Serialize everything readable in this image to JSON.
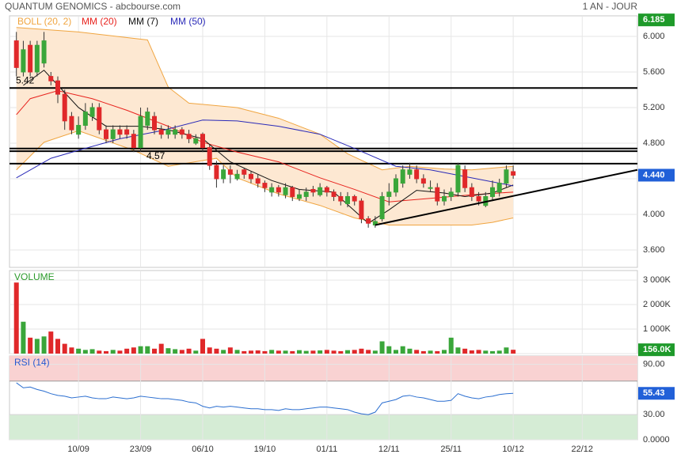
{
  "header": {
    "title": "QUANTUM GENOMICS - abcbourse.com",
    "period": "1 AN - JOUR"
  },
  "chart_data": [
    {
      "type": "candlestick",
      "up_color": "#3aa63a",
      "down_color": "#e0282a",
      "open": [
        5.95,
        5.6,
        5.9,
        5.6,
        5.7,
        5.55,
        5.5,
        5.35,
        5.1,
        4.9,
        5.0,
        5.1,
        5.2,
        4.95,
        4.85,
        4.95,
        4.95,
        4.9,
        4.75,
        5.0,
        5.1,
        4.95,
        4.9,
        4.9,
        4.95,
        4.9,
        4.8,
        4.9,
        4.75,
        4.55,
        4.4,
        4.5,
        4.4,
        4.5,
        4.45,
        4.4,
        4.35,
        4.25,
        4.3,
        4.22,
        4.3,
        4.18,
        4.2,
        4.28,
        4.22,
        4.3,
        4.25,
        4.2,
        4.12,
        4.2,
        4.15,
        3.95,
        3.88,
        3.95,
        4.2,
        4.25,
        4.35,
        4.45,
        4.5,
        4.4,
        4.3,
        4.3,
        4.15,
        4.2,
        4.25,
        4.5,
        4.3,
        4.2,
        4.1,
        4.2,
        4.25,
        4.35,
        4.48
      ],
      "high": [
        6.05,
        5.95,
        5.95,
        5.95,
        6.05,
        5.6,
        5.55,
        5.4,
        5.15,
        5.1,
        5.25,
        5.25,
        5.25,
        5.0,
        5.0,
        5.0,
        5.0,
        4.95,
        5.2,
        5.2,
        5.15,
        5.0,
        5.0,
        5.0,
        4.98,
        4.95,
        4.9,
        4.92,
        4.78,
        4.6,
        4.55,
        4.55,
        4.5,
        4.52,
        4.48,
        4.45,
        4.38,
        4.35,
        4.33,
        4.35,
        4.32,
        4.28,
        4.3,
        4.32,
        4.35,
        4.32,
        4.28,
        4.25,
        4.25,
        4.22,
        4.18,
        3.98,
        3.98,
        4.25,
        4.35,
        4.45,
        4.55,
        4.58,
        4.55,
        4.45,
        4.38,
        4.35,
        4.28,
        4.3,
        4.58,
        4.55,
        4.35,
        4.25,
        4.25,
        4.38,
        4.4,
        4.55,
        4.55
      ],
      "low": [
        5.55,
        5.55,
        5.55,
        5.55,
        5.65,
        5.45,
        5.25,
        4.95,
        4.9,
        4.85,
        4.95,
        5.05,
        4.9,
        4.8,
        4.8,
        4.85,
        4.85,
        4.7,
        4.7,
        4.95,
        4.9,
        4.85,
        4.85,
        4.85,
        4.85,
        4.8,
        4.78,
        4.7,
        4.5,
        4.3,
        4.35,
        4.35,
        4.38,
        4.4,
        4.35,
        4.3,
        4.25,
        4.2,
        4.2,
        4.18,
        4.15,
        4.15,
        4.15,
        4.2,
        4.2,
        4.2,
        4.15,
        4.1,
        4.08,
        4.1,
        3.9,
        3.85,
        3.85,
        3.92,
        4.1,
        4.2,
        4.3,
        4.4,
        4.35,
        4.3,
        4.25,
        4.1,
        4.1,
        4.15,
        4.2,
        4.25,
        4.15,
        4.1,
        4.08,
        4.15,
        4.2,
        4.3,
        4.4
      ],
      "close": [
        5.65,
        5.85,
        5.6,
        5.9,
        5.95,
        5.5,
        5.35,
        5.05,
        4.95,
        5.0,
        5.15,
        5.2,
        4.95,
        4.85,
        4.95,
        4.9,
        4.9,
        4.75,
        5.1,
        5.15,
        4.95,
        4.9,
        4.95,
        4.95,
        4.9,
        4.85,
        4.85,
        4.75,
        4.55,
        4.4,
        4.5,
        4.45,
        4.45,
        4.45,
        4.4,
        4.35,
        4.3,
        4.3,
        4.25,
        4.3,
        4.2,
        4.22,
        4.25,
        4.25,
        4.3,
        4.25,
        4.2,
        4.15,
        4.2,
        4.15,
        3.95,
        3.9,
        3.92,
        4.2,
        4.25,
        4.4,
        4.5,
        4.5,
        4.4,
        4.35,
        4.3,
        4.15,
        4.2,
        4.25,
        4.55,
        4.3,
        4.2,
        4.15,
        4.2,
        4.3,
        4.35,
        4.5,
        4.44
      ],
      "series": [
        {
          "name": "BOLL (20, 2)",
          "color": "#f0a540",
          "fill": "#fde8d2",
          "upper": {
            "x": [
              0,
              9,
              19,
              22,
              25,
              32,
              38,
              44,
              48,
              53,
              57,
              62,
              66,
              72
            ],
            "values": [
              6.1,
              6.05,
              5.96,
              5.43,
              5.25,
              5.2,
              5.08,
              4.9,
              4.68,
              4.5,
              4.54,
              4.51,
              4.5,
              4.54
            ]
          },
          "lower": {
            "x": [
              0,
              4,
              9,
              17,
              22,
              29,
              32,
              38,
              44,
              49,
              54,
              60,
              66,
              69,
              72
            ],
            "values": [
              4.5,
              4.81,
              4.94,
              4.72,
              4.54,
              4.63,
              4.41,
              4.23,
              4.1,
              3.96,
              3.88,
              3.88,
              3.88,
              3.91,
              3.96
            ]
          }
        },
        {
          "name": "MM (20)",
          "color": "#e8231e",
          "x": [
            0,
            2,
            6,
            11,
            16,
            22,
            27,
            32,
            38,
            44,
            49,
            54,
            60,
            66,
            72
          ],
          "values": [
            5.12,
            5.3,
            5.39,
            5.3,
            5.17,
            4.99,
            4.81,
            4.7,
            4.59,
            4.41,
            4.28,
            4.14,
            4.18,
            4.22,
            4.25
          ]
        },
        {
          "name": "MM (7)",
          "color": "#111111",
          "x": [
            1,
            4,
            9,
            13,
            18,
            22,
            27,
            31,
            37,
            41,
            46,
            51,
            54,
            58,
            62,
            65,
            69,
            72
          ],
          "values": [
            5.45,
            5.62,
            5.2,
            4.99,
            4.99,
            4.95,
            4.85,
            4.59,
            4.38,
            4.28,
            4.25,
            3.9,
            4.05,
            4.27,
            4.24,
            4.2,
            4.24,
            4.33
          ]
        },
        {
          "name": "MM (50)",
          "color": "#2a2ab8",
          "x": [
            0,
            5,
            9,
            15,
            21,
            27,
            32,
            38,
            44,
            49,
            55,
            60,
            66,
            72
          ],
          "values": [
            4.41,
            4.63,
            4.72,
            4.85,
            4.94,
            5.06,
            5.05,
            4.99,
            4.9,
            4.74,
            4.54,
            4.5,
            4.41,
            4.32
          ]
        }
      ],
      "levels": [
        {
          "value": 5.42,
          "label": "5.42"
        },
        {
          "value": 4.74
        },
        {
          "value": 4.71
        },
        {
          "value": 4.57,
          "label": "4.57"
        }
      ],
      "trendline": {
        "x": [
          52,
          90
        ],
        "values": [
          3.88,
          4.5
        ]
      },
      "markers": [
        {
          "value": 6.185,
          "label": "6.185",
          "color": "#1e9a2a"
        },
        {
          "value": 4.44,
          "label": "4.440",
          "color": "#2160d8"
        }
      ],
      "xlim": [
        -1,
        90
      ],
      "ylim": [
        3.404,
        6.231
      ],
      "yticks": [
        {
          "value": 6,
          "label": "6.000"
        },
        {
          "value": 5.6,
          "label": "5.600"
        },
        {
          "value": 5.2,
          "label": "5.200"
        },
        {
          "value": 4.8,
          "label": "4.800"
        },
        {
          "value": 4.4,
          "label": "4.400"
        },
        {
          "value": 4,
          "label": "4.000"
        },
        {
          "value": 3.6,
          "label": "3.600"
        }
      ],
      "grid": true
    },
    {
      "type": "bar",
      "title": "VOLUME",
      "values": [
        2900000,
        1300000,
        650000,
        600000,
        700000,
        900000,
        600000,
        400000,
        250000,
        200000,
        150000,
        180000,
        120000,
        100000,
        150000,
        120000,
        200000,
        250000,
        300000,
        300000,
        200000,
        400000,
        220000,
        180000,
        150000,
        200000,
        120000,
        600000,
        250000,
        200000,
        150000,
        250000,
        150000,
        100000,
        120000,
        130000,
        100000,
        150000,
        120000,
        120000,
        100000,
        140000,
        110000,
        120000,
        130000,
        150000,
        120000,
        100000,
        140000,
        150000,
        200000,
        150000,
        120000,
        500000,
        300000,
        150000,
        300000,
        200000,
        150000,
        100000,
        120000,
        100000,
        150000,
        650000,
        250000,
        200000,
        130000,
        150000,
        120000,
        100000,
        120000,
        250000,
        156000
      ],
      "markers": [
        {
          "value": 156000,
          "label": "156.0K",
          "color": "#1e9a2a"
        }
      ],
      "xlim": [
        -1,
        90
      ],
      "ylim": [
        0,
        3390000
      ],
      "yticks": [
        {
          "value": 3000000,
          "label": "3 000K"
        },
        {
          "value": 2000000,
          "label": "2 000K"
        },
        {
          "value": 1000000,
          "label": "1 000K"
        },
        0
      ],
      "grid": true
    },
    {
      "type": "line",
      "title": "RSI (14)",
      "color": "#2a6ed0",
      "values": [
        68,
        62,
        63,
        60,
        58,
        55,
        53,
        52,
        50,
        51,
        52,
        50,
        49,
        49,
        51,
        50,
        49,
        50,
        52,
        51,
        50,
        49,
        49,
        48,
        47,
        45,
        44,
        40,
        38,
        40,
        39,
        40,
        39,
        38,
        37,
        37,
        36,
        36,
        35,
        37,
        36,
        36,
        37,
        38,
        39,
        39,
        38,
        37,
        36,
        33,
        31,
        30,
        33,
        44,
        46,
        48,
        52,
        53,
        51,
        50,
        48,
        46,
        46,
        47,
        55,
        52,
        50,
        49,
        51,
        52,
        54,
        55,
        55.43
      ],
      "zones": [
        {
          "from": 70,
          "to": 100,
          "color": "#f9d2d2"
        },
        {
          "from": 0,
          "to": 30,
          "color": "#d5ecd5"
        }
      ],
      "markers": [
        {
          "value": 55.43,
          "label": "55.43",
          "color": "#2160d8"
        }
      ],
      "xlim": [
        -1,
        90
      ],
      "ylim": [
        0,
        100
      ],
      "yticks": [
        {
          "value": 90,
          "label": "90.00"
        },
        {
          "value": 30,
          "label": "30.00"
        },
        {
          "value": 0,
          "label": "0.0000"
        }
      ],
      "xticks": [
        {
          "value": 9,
          "label": "10/09"
        },
        {
          "value": 18,
          "label": "23/09"
        },
        {
          "value": 27,
          "label": "06/10"
        },
        {
          "value": 36,
          "label": "19/10"
        },
        {
          "value": 45,
          "label": "01/11"
        },
        {
          "value": 54,
          "label": "12/11"
        },
        {
          "value": 63,
          "label": "25/11"
        },
        {
          "value": 72,
          "label": "10/12"
        },
        {
          "value": 82,
          "label": "22/12"
        }
      ],
      "grid": true
    }
  ]
}
